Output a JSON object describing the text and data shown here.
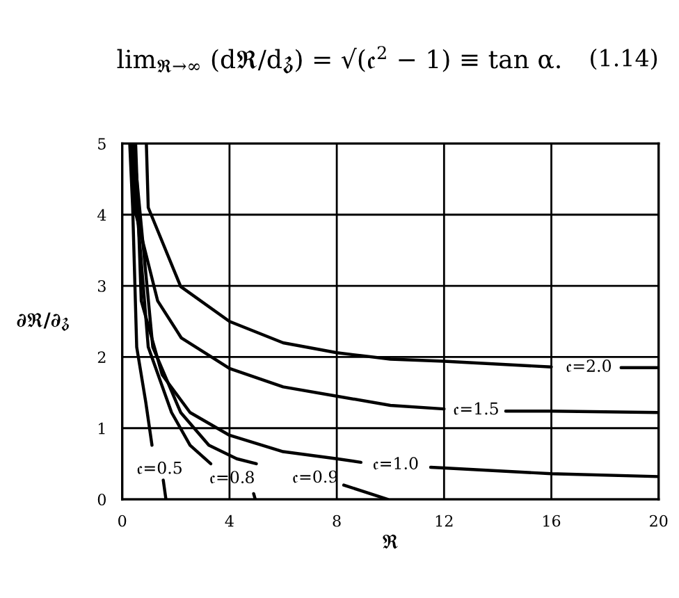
{
  "chart_data": {
    "type": "line",
    "title": "lim$_{ℜ→∞}$ (dℜ/d𝔷) = √(𝔠$^{2}$ − 1) ≡ tan α.",
    "xlabel": "ℜ",
    "ylabel": "∂ℜ/∂𝔷",
    "xlim": [
      0,
      20
    ],
    "ylim": [
      0,
      5
    ],
    "xticks": [
      0,
      4,
      8,
      12,
      16,
      20
    ],
    "yticks": [
      0,
      1,
      2,
      3,
      4,
      5
    ],
    "grid": true,
    "marker": "none",
    "line_style": "solid",
    "series": [
      {
        "name": "𝔠=2.0",
        "color": "#000000",
        "x": [
          0.9,
          0.97,
          2.18,
          4,
          6,
          8,
          10,
          12,
          16,
          17.4,
          18.6,
          20
        ],
        "values": [
          5,
          4.1,
          2.99,
          2.5,
          2.2,
          2.06,
          1.97,
          1.94,
          1.86,
          null,
          1.85,
          1.85
        ]
      },
      {
        "name": "𝔠=1.5",
        "color": "#000000",
        "x": [
          0.38,
          0.45,
          1.32,
          2.2,
          4,
          6,
          8,
          10,
          12,
          13.2,
          14.3,
          16,
          20
        ],
        "values": [
          5,
          4.1,
          2.79,
          2.27,
          1.84,
          1.58,
          1.45,
          1.32,
          1.27,
          null,
          1.24,
          1.24,
          1.22
        ]
      },
      {
        "name": "𝔠=1.0",
        "color": "#000000",
        "x": [
          0.5,
          0.71,
          1.49,
          2.53,
          4,
          6,
          8,
          8.9,
          10.2,
          11.5,
          12,
          16,
          20
        ],
        "values": [
          5,
          2.79,
          1.75,
          1.22,
          0.9,
          0.67,
          0.57,
          0.52,
          null,
          0.45,
          0.44,
          0.36,
          0.32
        ]
      },
      {
        "name": "𝔠=0.9",
        "color": "#000000",
        "x": [
          0.42,
          1.14,
          2.18,
          3.23,
          4.27,
          5.0,
          7.2,
          8.26,
          9.9
        ],
        "values": [
          5,
          2.14,
          1.22,
          0.76,
          0.57,
          0.5,
          null,
          0.2,
          0
        ]
      },
      {
        "name": "𝔠=0.8",
        "color": "#000000",
        "x": [
          0.35,
          0.97,
          1.84,
          2.53,
          3.3,
          4.1,
          4.9,
          4.96
        ],
        "values": [
          5,
          2.14,
          1.22,
          0.76,
          0.5,
          null,
          0.08,
          0
        ]
      },
      {
        "name": "𝔠=0.5",
        "color": "#000000",
        "x": [
          0.28,
          0.39,
          0.54,
          0.88,
          1.11,
          1.4,
          1.53,
          1.63
        ],
        "values": [
          5,
          4.1,
          2.14,
          1.36,
          0.76,
          null,
          0.27,
          0
        ]
      }
    ],
    "annotations": [
      "(1.14)"
    ]
  }
}
